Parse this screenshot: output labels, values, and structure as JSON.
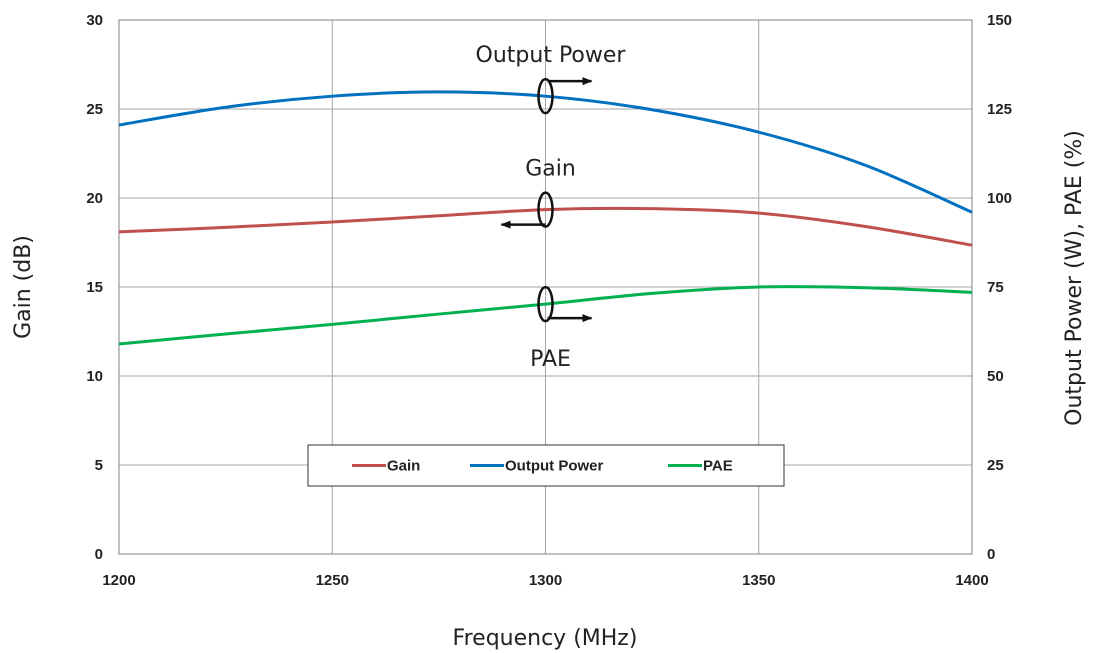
{
  "chart_data": {
    "type": "line",
    "title": "",
    "xlabel": "Frequency (MHz)",
    "ylabel": "Gain (dB)",
    "y2label": "Output Power (W), PAE (%)",
    "xlim": [
      1200,
      1400
    ],
    "ylim": [
      0,
      30
    ],
    "y2lim": [
      0,
      150
    ],
    "x_ticks": [
      "1200",
      "1250",
      "1300",
      "1350",
      "1400"
    ],
    "y_ticks": [
      "0",
      "5",
      "10",
      "15",
      "20",
      "25",
      "30"
    ],
    "y2_ticks": [
      "0",
      "25",
      "50",
      "75",
      "100",
      "125",
      "150"
    ],
    "grid": true,
    "legend_position": "bottom-center",
    "x": [
      1200,
      1225,
      1250,
      1275,
      1300,
      1325,
      1350,
      1375,
      1400
    ],
    "series": [
      {
        "name": "Gain",
        "axis": "left",
        "color": "#c0504d",
        "values": [
          18.1,
          18.35,
          18.65,
          19.0,
          19.35,
          19.4,
          19.15,
          18.4,
          17.35
        ]
      },
      {
        "name": "Output Power",
        "axis": "right",
        "color": "#0070c0",
        "values": [
          120.5,
          125.5,
          128.6,
          129.8,
          128.6,
          124.8,
          118.5,
          109.2,
          96.0
        ]
      },
      {
        "name": "PAE",
        "axis": "right",
        "color": "#00b050",
        "values": [
          59.0,
          61.8,
          64.5,
          67.4,
          70.2,
          73.2,
          75.0,
          74.8,
          73.5
        ]
      }
    ],
    "annotations": [
      {
        "text": "Output Power",
        "x": 1300,
        "series": "Output Power",
        "arrow": "right"
      },
      {
        "text": "Gain",
        "x": 1300,
        "series": "Gain",
        "arrow": "left"
      },
      {
        "text": "PAE",
        "x": 1300,
        "series": "PAE",
        "arrow": "right"
      }
    ]
  }
}
